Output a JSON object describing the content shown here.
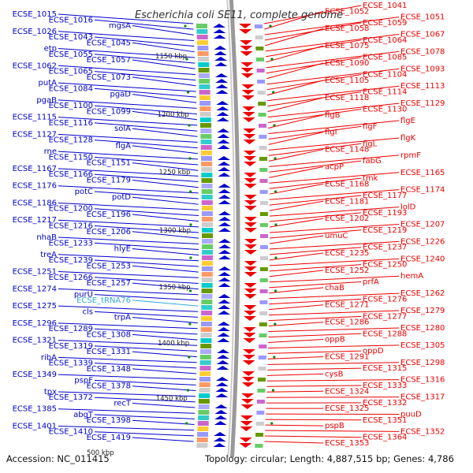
{
  "title": "Escherichia coli SE11, complete genome",
  "footer": {
    "accession": "Accession: NC_011415",
    "topology": "Topology: circular; Length: 4,887,515 bp; Genes: 4,786"
  },
  "colors": {
    "left_strand": "#0000cc",
    "right_strand": "#ee0000",
    "trna": "#33aadd",
    "backbone": "#999999",
    "tick": "#008800"
  },
  "ticks": [
    "1150 kbp",
    "1200 kbp",
    "1250 kbp",
    "1300 kbp",
    "1350 kbp",
    "1400 kbp",
    "1450 kbp",
    "500 kbp"
  ],
  "left_labels": [
    "ECSE_1015",
    "ECSE_1016",
    "mgsA",
    "ECSE_1026",
    "ECSE_1043",
    "ECSE_1045",
    "etp",
    "ECSE_1055",
    "ECSE_1057",
    "ECSE_1062",
    "ECSE_1065",
    "ECSE_1073",
    "putA",
    "ECSE_1084",
    "pgaD",
    "pgaB",
    "ECSE_1100",
    "ECSE_1099",
    "ECSE_1115",
    "ECSE_1116",
    "solA",
    "ECSE_1127",
    "ECSE_1128",
    "flgA",
    "rne",
    "ECSE_1150",
    "ECSE_1151",
    "ECSE_1167",
    "ECSE_1166",
    "ECSE_1179",
    "ECSE_1176",
    "potC",
    "potD",
    "ECSE_1186",
    "ECSE_1200",
    "ECSE_1196",
    "ECSE_1217",
    "ECSE_1216",
    "ECSE_1206",
    "nhaB",
    "ECSE_1233",
    "hlyE",
    "treA",
    "ECSE_1239",
    "ECSE_1253",
    "ECSE_1251",
    "ECSE_1266",
    "ECSE_1257",
    "ECSE_1274",
    "purU",
    "ECSE_tRNA76",
    "ECSE_1275",
    "cls",
    "trpA",
    "ECSE_1296",
    "ECSE_1289",
    "ECSE_1308",
    "ECSE_1321",
    "ECSE_1319",
    "ECSE_1331",
    "ribA",
    "ECSE_1339",
    "ECSE_1348",
    "ECSE_1349",
    "pspF",
    "ECSE_1378",
    "tpx",
    "ECSE_1372",
    "recT",
    "ECSE_1385",
    "abgT",
    "ECSE_1398",
    "ECSE_1401",
    "ECSE_1410",
    "ECSE_1419"
  ],
  "right_labels": [
    "ECSE_1041",
    "ECSE_1052",
    "ECSE_1051",
    "ECSE_1059",
    "ECSE_1058",
    "ECSE_1067",
    "ECSE_1064",
    "ECSE_1075",
    "ECSE_1078",
    "ECSE_1085",
    "ECSE_1090",
    "ECSE_1093",
    "ECSE_1104",
    "ECSE_1105",
    "ECSE_1113",
    "ECSE_1114",
    "ECSE_1118",
    "ECSE_1129",
    "ECSE_1130",
    "flgB",
    "flgE",
    "flgF",
    "flgI",
    "flgK",
    "flgL",
    "ECSE_1148",
    "rpmF",
    "fabG",
    "acpP",
    "ECSE_1165",
    "tmk",
    "ECSE_1168",
    "ECSE_1174",
    "ECSE_1177",
    "ECSE_1181",
    "lolD",
    "ECSE_1193",
    "ECSE_1202",
    "ECSE_1207",
    "ECSE_1219",
    "umuC",
    "ECSE_1226",
    "ECSE_1237",
    "ECSE_1235",
    "ECSE_1240",
    "ECSE_1250",
    "ECSE_1252",
    "hemA",
    "prfA",
    "chaB",
    "ECSE_1262",
    "ECSE_1276",
    "ECSE_1271",
    "ECSE_1279",
    "ECSE_1277",
    "ECSE_1286",
    "ECSE_1280",
    "ECSE_1288",
    "oppB",
    "ECSE_1305",
    "oppD",
    "ECSE_1291",
    "ECSE_1298",
    "ECSE_1315",
    "cysB",
    "ECSE_1316",
    "ECSE_1333",
    "ECSE_1324",
    "ECSE_1317",
    "ECSE_1332",
    "ECSE_1325",
    "puuD",
    "ECSE_1351",
    "pspB",
    "ECSE_1352",
    "ECSE_1364",
    "ECSE_1353"
  ]
}
